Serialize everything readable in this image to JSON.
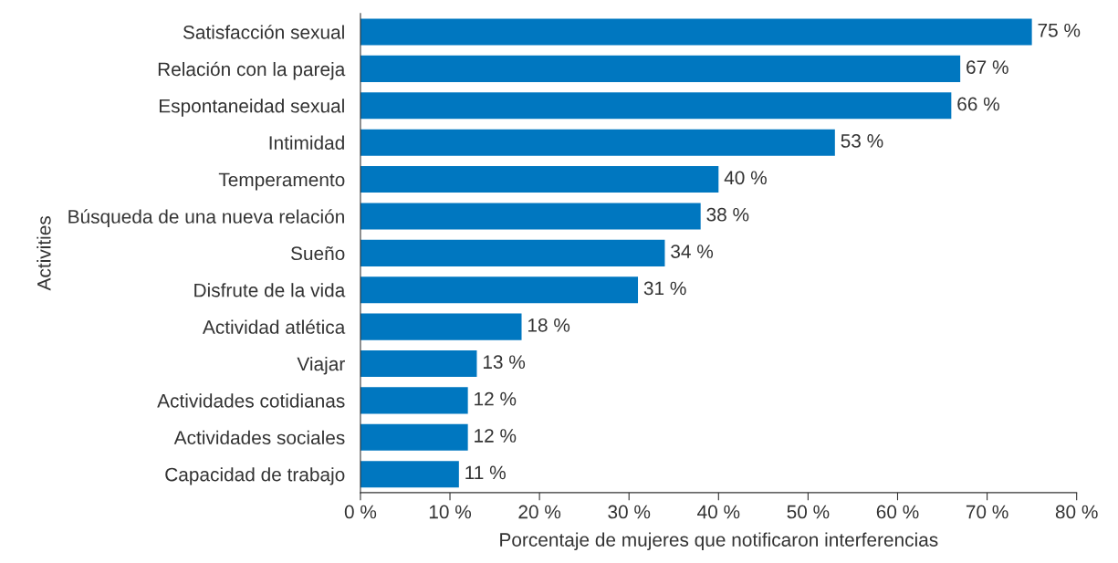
{
  "chart_data": {
    "type": "bar",
    "orientation": "horizontal",
    "xlabel": "Porcentaje de mujeres que notificaron interferencias",
    "ylabel": "Activities",
    "categories": [
      "Satisfacción sexual",
      "Relación con la pareja",
      "Espontaneidad sexual",
      "Intimidad",
      "Temperamento",
      "Búsqueda de una nueva relación",
      "Sueño",
      "Disfrute de la vida",
      "Actividad atlética",
      "Viajar",
      "Actividades cotidianas",
      "Actividades sociales",
      "Capacidad de trabajo"
    ],
    "values": [
      75,
      67,
      66,
      53,
      40,
      38,
      34,
      31,
      18,
      13,
      12,
      12,
      11
    ],
    "value_labels": [
      "75 %",
      "67 %",
      "66 %",
      "53 %",
      "40 %",
      "38 %",
      "34 %",
      "31 %",
      "18 %",
      "13 %",
      "12 %",
      "12 %",
      "11 %"
    ],
    "color": "#0077c0",
    "xlim": [
      0,
      80
    ],
    "xticks": [
      {
        "value": 0,
        "label": "0 %"
      },
      {
        "value": 10,
        "label": "10 %"
      },
      {
        "value": 20,
        "label": "20 %"
      },
      {
        "value": 30,
        "label": "30 %"
      },
      {
        "value": 40,
        "label": "40 %"
      },
      {
        "value": 50,
        "label": "50 %"
      },
      {
        "value": 60,
        "label": "60 %"
      },
      {
        "value": 70,
        "label": "70 %"
      },
      {
        "value": 80,
        "label": "80 %"
      }
    ],
    "grid": false
  }
}
